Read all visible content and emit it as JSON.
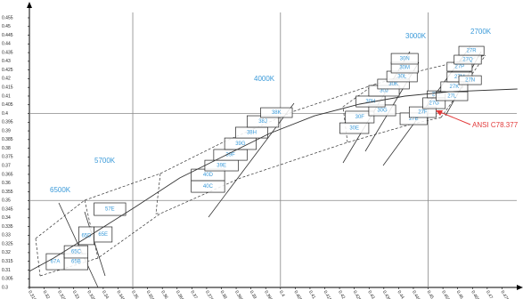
{
  "chart_data": {
    "type": "chromaticity",
    "xlim": [
      0.315,
      0.48
    ],
    "ylim": [
      0.3,
      0.455
    ],
    "xticks": [
      0.315,
      0.32,
      0.325,
      0.33,
      0.335,
      0.34,
      0.345,
      0.35,
      0.355,
      0.36,
      0.365,
      0.37,
      0.375,
      0.38,
      0.385,
      0.39,
      0.395,
      0.4,
      0.405,
      0.41,
      0.415,
      0.42,
      0.425,
      0.43,
      0.435,
      0.44,
      0.445,
      0.45,
      0.455,
      0.46,
      0.465,
      0.47,
      0.475
    ],
    "yticks": [
      0.3,
      0.305,
      0.31,
      0.315,
      0.32,
      0.325,
      0.33,
      0.335,
      0.34,
      0.345,
      0.35,
      0.355,
      0.36,
      0.365,
      0.37,
      0.375,
      0.38,
      0.385,
      0.39,
      0.395,
      0.4,
      0.405,
      0.41,
      0.415,
      0.42,
      0.425,
      0.43,
      0.435,
      0.44,
      0.445,
      0.45,
      0.455
    ],
    "xgrid": [
      0.35,
      0.4,
      0.45
    ],
    "ygrid": [
      0.35,
      0.4
    ],
    "bin_color": "#3a9ad9",
    "cct_labels": [
      "6500K",
      "5700K",
      "4000K",
      "3000K",
      "2700K"
    ],
    "annotation": "ANSI C78.377",
    "curve": {
      "x": [
        0.3149,
        0.3232,
        0.3354,
        0.3506,
        0.3659,
        0.3811,
        0.3963,
        0.4116,
        0.4268,
        0.4421,
        0.4573,
        0.4802
      ],
      "y": [
        0.3092,
        0.3169,
        0.3297,
        0.346,
        0.3629,
        0.3757,
        0.3885,
        0.3987,
        0.4054,
        0.41,
        0.4125,
        0.4141
      ]
    },
    "bins": [
      {
        "label": "67A",
        "x": [
          0.3207,
          0.3268
        ],
        "y": [
          0.3102,
          0.3194
        ]
      },
      {
        "label": "65B",
        "x": [
          0.3268,
          0.3348
        ],
        "y": [
          0.3102,
          0.3194
        ]
      },
      {
        "label": "65C",
        "x": [
          0.3268,
          0.3348
        ],
        "y": [
          0.3169,
          0.324
        ]
      },
      {
        "label": "65D",
        "x": [
          0.3317,
          0.3369
        ],
        "y": [
          0.3246,
          0.3348
        ]
      },
      {
        "label": "65E",
        "x": [
          0.3369,
          0.343
        ],
        "y": [
          0.3261,
          0.3348
        ]
      },
      {
        "label": "57E",
        "x": [
          0.3369,
          0.3476
        ],
        "y": [
          0.3414,
          0.3486
        ]
      },
      {
        "label": "40C",
        "x": [
          0.3698,
          0.3811
        ],
        "y": [
          0.3547,
          0.3614
        ]
      },
      {
        "label": "40D",
        "x": [
          0.3698,
          0.3811
        ],
        "y": [
          0.3614,
          0.368
        ]
      },
      {
        "label": "39E",
        "x": [
          0.3744,
          0.3857
        ],
        "y": [
          0.367,
          0.3731
        ]
      },
      {
        "label": "39F",
        "x": [
          0.3774,
          0.3887
        ],
        "y": [
          0.3731,
          0.3793
        ]
      },
      {
        "label": "39G",
        "x": [
          0.3811,
          0.3918
        ],
        "y": [
          0.3793,
          0.3859
        ]
      },
      {
        "label": "38H",
        "x": [
          0.3848,
          0.3957
        ],
        "y": [
          0.3859,
          0.3921
        ]
      },
      {
        "label": "38J",
        "x": [
          0.3887,
          0.3994
        ],
        "y": [
          0.3921,
          0.3987
        ]
      },
      {
        "label": "38K",
        "x": [
          0.3933,
          0.404
        ],
        "y": [
          0.3977,
          0.4033
        ]
      },
      {
        "label": "30E",
        "x": [
          0.4201,
          0.4299
        ],
        "y": [
          0.3885,
          0.3946
        ]
      },
      {
        "label": "30F",
        "x": [
          0.422,
          0.4317
        ],
        "y": [
          0.3946,
          0.4013
        ]
      },
      {
        "label": "30G",
        "x": [
          0.4299,
          0.439
        ],
        "y": [
          0.3987,
          0.4049
        ]
      },
      {
        "label": "30H",
        "x": [
          0.4256,
          0.4354
        ],
        "y": [
          0.4038,
          0.41
        ]
      },
      {
        "label": "30J",
        "x": [
          0.4299,
          0.4402
        ],
        "y": [
          0.41,
          0.4161
        ]
      },
      {
        "label": "30K",
        "x": [
          0.4329,
          0.4436
        ],
        "y": [
          0.4141,
          0.4197
        ]
      },
      {
        "label": "30L",
        "x": [
          0.436,
          0.4463
        ],
        "y": [
          0.4182,
          0.4243
        ]
      },
      {
        "label": "30M",
        "x": [
          0.4375,
          0.4466
        ],
        "y": [
          0.4233,
          0.4294
        ]
      },
      {
        "label": "30N",
        "x": [
          0.4375,
          0.4466
        ],
        "y": [
          0.4284,
          0.4345
        ]
      },
      {
        "label": "27E",
        "x": [
          0.4405,
          0.4497
        ],
        "y": [
          0.3936,
          0.4003
        ]
      },
      {
        "label": "27F",
        "x": [
          0.4436,
          0.4527
        ],
        "y": [
          0.3977,
          0.4038
        ]
      },
      {
        "label": "27G",
        "x": [
          0.4482,
          0.4558
        ],
        "y": [
          0.4028,
          0.409
        ]
      },
      {
        "label": "27J",
        "x": [
          0.4497,
          0.4558
        ],
        "y": [
          0.409,
          0.413
        ]
      },
      {
        "label": "27L",
        "x": [
          0.4527,
          0.4634
        ],
        "y": [
          0.4074,
          0.4125
        ]
      },
      {
        "label": "27K",
        "x": [
          0.4543,
          0.4634
        ],
        "y": [
          0.4125,
          0.4182
        ]
      },
      {
        "label": "27M",
        "x": [
          0.4564,
          0.4649
        ],
        "y": [
          0.4182,
          0.4238
        ]
      },
      {
        "label": "27N",
        "x": [
          0.4604,
          0.468
        ],
        "y": [
          0.4166,
          0.4217
        ]
      },
      {
        "label": "27P",
        "x": [
          0.4564,
          0.4649
        ],
        "y": [
          0.4243,
          0.4294
        ]
      },
      {
        "label": "27Q",
        "x": [
          0.4588,
          0.468
        ],
        "y": [
          0.4284,
          0.4335
        ]
      },
      {
        "label": "27R",
        "x": [
          0.4604,
          0.4689
        ],
        "y": [
          0.4335,
          0.4386
        ]
      }
    ]
  }
}
